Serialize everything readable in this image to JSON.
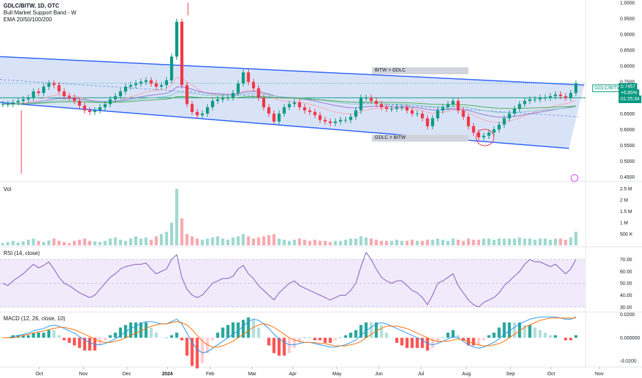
{
  "legend": {
    "symbol_line": "GDLC/BITW, 1D, OTC",
    "indicator_1": "Bull Market Support Band - W",
    "indicator_2": "EMA 20/50/100/200"
  },
  "annotations": {
    "upper_tag": "BITW > GDLC",
    "lower_tag": "GDLC > BITW"
  },
  "price_label": {
    "symbol": "GDLC/BITW",
    "price": "0.7457",
    "change": "+6.85%",
    "countdown": "01:25:34"
  },
  "panes": {
    "vol": "Vol",
    "rsi": "RSI (14, close)",
    "macd": "MACD (12, 26, close, 10)"
  },
  "colors": {
    "up": "#089981",
    "down": "#f23645",
    "channel_fill": "#c9d7f5",
    "channel_line": "#2962ff",
    "rsi_line": "#7e57c2",
    "rsi_band": "#f1eafa",
    "macd_line": "#2196f3",
    "signal_line": "#ff6d00"
  },
  "chart_data": [
    {
      "type": "candlestick",
      "title": "GDLC/BITW, 1D, OTC",
      "x_labels": [
        "Oct",
        "Nov",
        "Dec",
        "2024",
        "Feb",
        "Mar",
        "Apr",
        "May",
        "Jun",
        "Jul",
        "Aug",
        "Sep",
        "Oct",
        "Nov"
      ],
      "y_ticks": [
        "1.0000",
        "0.9500",
        "0.9000",
        "0.8500",
        "0.8000",
        "0.7500",
        "0.7000",
        "0.6500",
        "0.6000",
        "0.5500",
        "0.5000",
        "0.4500"
      ],
      "ylim": [
        0.44,
        1.0
      ],
      "last_value": 0.7457,
      "close_series": [
        0.68,
        0.68,
        0.685,
        0.69,
        0.695,
        0.7,
        0.72,
        0.715,
        0.735,
        0.745,
        0.74,
        0.72,
        0.705,
        0.7,
        0.69,
        0.675,
        0.66,
        0.655,
        0.66,
        0.67,
        0.68,
        0.695,
        0.705,
        0.72,
        0.735,
        0.74,
        0.745,
        0.75,
        0.755,
        0.745,
        0.735,
        0.74,
        0.755,
        0.83,
        0.94,
        0.74,
        0.68,
        0.655,
        0.645,
        0.65,
        0.67,
        0.69,
        0.695,
        0.7,
        0.7,
        0.715,
        0.745,
        0.78,
        0.75,
        0.73,
        0.7,
        0.67,
        0.65,
        0.625,
        0.65,
        0.67,
        0.68,
        0.685,
        0.67,
        0.66,
        0.655,
        0.645,
        0.63,
        0.625,
        0.62,
        0.625,
        0.63,
        0.63,
        0.64,
        0.66,
        0.7,
        0.7,
        0.69,
        0.68,
        0.67,
        0.665,
        0.665,
        0.67,
        0.67,
        0.66,
        0.65,
        0.65,
        0.635,
        0.61,
        0.635,
        0.66,
        0.67,
        0.68,
        0.69,
        0.66,
        0.64,
        0.61,
        0.59,
        0.575,
        0.58,
        0.59,
        0.6,
        0.615,
        0.635,
        0.65,
        0.665,
        0.68,
        0.69,
        0.695,
        0.695,
        0.7,
        0.7,
        0.705,
        0.71,
        0.705,
        0.7,
        0.715,
        0.745
      ]
    },
    {
      "type": "bar",
      "title": "Vol",
      "y_ticks": [
        "2.5 M",
        "2 M",
        "1.5 M",
        "1 M",
        "500 K"
      ],
      "ylim": [
        0,
        2.7
      ],
      "values_millions": [
        0.1,
        0.15,
        0.2,
        0.12,
        0.18,
        0.25,
        0.3,
        0.2,
        0.15,
        0.22,
        0.3,
        0.2,
        0.15,
        0.1,
        0.2,
        0.25,
        0.3,
        0.2,
        0.18,
        0.15,
        0.2,
        0.3,
        0.35,
        0.25,
        0.2,
        0.3,
        0.4,
        0.3,
        0.35,
        0.25,
        0.4,
        0.5,
        0.6,
        1.0,
        2.5,
        1.2,
        0.5,
        0.4,
        0.3,
        0.25,
        0.3,
        0.35,
        0.4,
        0.3,
        0.25,
        0.35,
        0.4,
        0.5,
        0.4,
        0.3,
        0.35,
        0.4,
        0.45,
        0.5,
        0.3,
        0.25,
        0.2,
        0.25,
        0.3,
        0.25,
        0.2,
        0.25,
        0.2,
        0.2,
        0.15,
        0.2,
        0.2,
        0.25,
        0.3,
        0.3,
        0.4,
        0.35,
        0.3,
        0.25,
        0.2,
        0.2,
        0.2,
        0.25,
        0.2,
        0.2,
        0.25,
        0.2,
        0.2,
        0.25,
        0.25,
        0.3,
        0.25,
        0.2,
        0.3,
        0.25,
        0.2,
        0.3,
        0.25,
        0.25,
        0.3,
        0.3,
        0.25,
        0.3,
        0.3,
        0.3,
        0.3,
        0.35,
        0.3,
        0.3,
        0.25,
        0.3,
        0.3,
        0.25,
        0.3,
        0.3,
        0.25,
        0.35,
        0.6
      ]
    },
    {
      "type": "line",
      "title": "RSI (14, close)",
      "y_ticks": [
        "70.00",
        "60.00",
        "50.00",
        "40.00",
        "30.00"
      ],
      "ylim": [
        27,
        79
      ],
      "band": [
        30,
        70
      ],
      "values": [
        50,
        48,
        52,
        55,
        58,
        62,
        66,
        63,
        65,
        68,
        62,
        55,
        50,
        48,
        45,
        42,
        40,
        38,
        40,
        45,
        50,
        55,
        58,
        62,
        64,
        65,
        66,
        66,
        67,
        62,
        58,
        60,
        62,
        70,
        74,
        55,
        45,
        40,
        38,
        40,
        45,
        50,
        52,
        54,
        54,
        56,
        62,
        65,
        58,
        54,
        48,
        44,
        40,
        36,
        42,
        46,
        50,
        52,
        48,
        46,
        44,
        42,
        40,
        38,
        36,
        38,
        40,
        40,
        44,
        50,
        64,
        76,
        70,
        62,
        55,
        52,
        50,
        52,
        52,
        48,
        44,
        42,
        38,
        32,
        40,
        50,
        52,
        55,
        58,
        48,
        42,
        36,
        32,
        30,
        34,
        36,
        38,
        42,
        48,
        52,
        56,
        60,
        66,
        70,
        68,
        68,
        66,
        64,
        66,
        62,
        58,
        62,
        70
      ]
    },
    {
      "type": "line+bar",
      "title": "MACD (12, 26, close, 10)",
      "y_ticks": [
        "0.0200",
        "0.000000",
        "-0.0200"
      ],
      "ylim": [
        -0.024,
        0.021
      ],
      "macd": [
        0.0,
        0.0,
        0.001,
        0.002,
        0.003,
        0.004,
        0.006,
        0.007,
        0.008,
        0.01,
        0.011,
        0.01,
        0.008,
        0.006,
        0.004,
        0.001,
        -0.002,
        -0.004,
        -0.006,
        -0.006,
        -0.005,
        -0.003,
        -0.001,
        0.002,
        0.005,
        0.008,
        0.01,
        0.012,
        0.014,
        0.014,
        0.013,
        0.012,
        0.012,
        0.014,
        0.016,
        0.012,
        0.004,
        -0.004,
        -0.01,
        -0.013,
        -0.012,
        -0.009,
        -0.006,
        -0.003,
        0.0,
        0.003,
        0.006,
        0.01,
        0.014,
        0.016,
        0.015,
        0.012,
        0.008,
        0.003,
        -0.001,
        -0.004,
        -0.006,
        -0.006,
        -0.005,
        -0.004,
        -0.004,
        -0.005,
        -0.006,
        -0.007,
        -0.008,
        -0.008,
        -0.007,
        -0.006,
        -0.004,
        -0.002,
        0.002,
        0.006,
        0.009,
        0.012,
        0.013,
        0.012,
        0.01,
        0.008,
        0.006,
        0.004,
        0.002,
        0.0,
        -0.002,
        -0.005,
        -0.006,
        -0.005,
        -0.003,
        -0.001,
        0.001,
        0.0,
        -0.003,
        -0.006,
        -0.008,
        -0.009,
        -0.008,
        -0.006,
        -0.004,
        -0.001,
        0.003,
        0.006,
        0.009,
        0.012,
        0.014,
        0.016,
        0.017,
        0.018,
        0.018,
        0.018,
        0.018,
        0.017,
        0.016,
        0.016,
        0.018
      ],
      "signal": [
        0.0,
        0.0,
        0.0,
        0.001,
        0.002,
        0.003,
        0.004,
        0.005,
        0.006,
        0.007,
        0.008,
        0.009,
        0.009,
        0.008,
        0.007,
        0.005,
        0.003,
        0.001,
        -0.001,
        -0.003,
        -0.004,
        -0.004,
        -0.003,
        -0.002,
        0.0,
        0.002,
        0.004,
        0.006,
        0.008,
        0.01,
        0.011,
        0.012,
        0.012,
        0.013,
        0.014,
        0.013,
        0.011,
        0.007,
        0.002,
        -0.003,
        -0.006,
        -0.008,
        -0.008,
        -0.007,
        -0.005,
        -0.003,
        0.0,
        0.003,
        0.006,
        0.009,
        0.011,
        0.012,
        0.011,
        0.009,
        0.006,
        0.003,
        0.0,
        -0.002,
        -0.003,
        -0.004,
        -0.004,
        -0.004,
        -0.005,
        -0.005,
        -0.006,
        -0.007,
        -0.007,
        -0.007,
        -0.006,
        -0.005,
        -0.003,
        0.0,
        0.003,
        0.006,
        0.008,
        0.01,
        0.01,
        0.01,
        0.009,
        0.008,
        0.006,
        0.004,
        0.002,
        0.0,
        -0.002,
        -0.003,
        -0.003,
        -0.003,
        -0.002,
        -0.001,
        -0.002,
        -0.003,
        -0.005,
        -0.006,
        -0.007,
        -0.007,
        -0.006,
        -0.005,
        -0.003,
        0.0,
        0.003,
        0.006,
        0.009,
        0.011,
        0.013,
        0.015,
        0.016,
        0.017,
        0.017,
        0.017,
        0.017,
        0.017,
        0.017
      ]
    }
  ]
}
